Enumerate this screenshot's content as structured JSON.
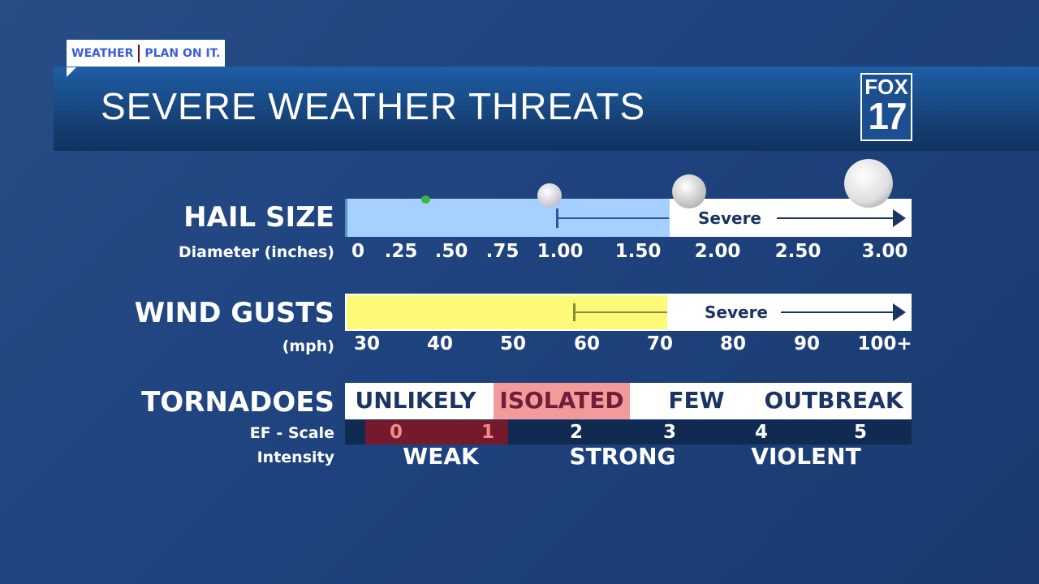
{
  "tagline": {
    "left": "WEATHER",
    "right": "PLAN ON IT."
  },
  "header": {
    "title": "SEVERE WEATHER THREATS",
    "logo_top": "FOX",
    "logo_bottom": "17"
  },
  "hail": {
    "label": "HAIL SIZE",
    "sublabel": "Diameter (inches)",
    "severe_label": "Severe",
    "severe_threshold": 1.0,
    "ticks": [
      "0",
      ".25",
      ".50",
      ".75",
      "1.00",
      "1.50",
      "2.00",
      "2.50",
      "3.00"
    ],
    "fill_color": "#a6d0ff",
    "icons": [
      "pea",
      "quarter",
      "golf-ball",
      "baseball"
    ]
  },
  "wind": {
    "label": "WIND GUSTS",
    "sublabel": "(mph)",
    "severe_label": "Severe",
    "severe_threshold": 58,
    "ticks": [
      "30",
      "40",
      "50",
      "60",
      "70",
      "80",
      "90",
      "100+"
    ],
    "fill_color": "#fdfa7a"
  },
  "tornadoes": {
    "label": "TORNADOES",
    "categories": [
      "UNLIKELY",
      "ISOLATED",
      "FEW",
      "OUTBREAK"
    ],
    "highlighted": "ISOLATED",
    "highlight_color": "#f39a9a",
    "ef_label": "EF - Scale",
    "ef_values": [
      "0",
      "1",
      "2",
      "3",
      "4",
      "5"
    ],
    "ef_highlighted": [
      "0",
      "1"
    ],
    "intensity_label": "Intensity",
    "intensity": [
      "WEAK",
      "STRONG",
      "VIOLENT"
    ]
  }
}
